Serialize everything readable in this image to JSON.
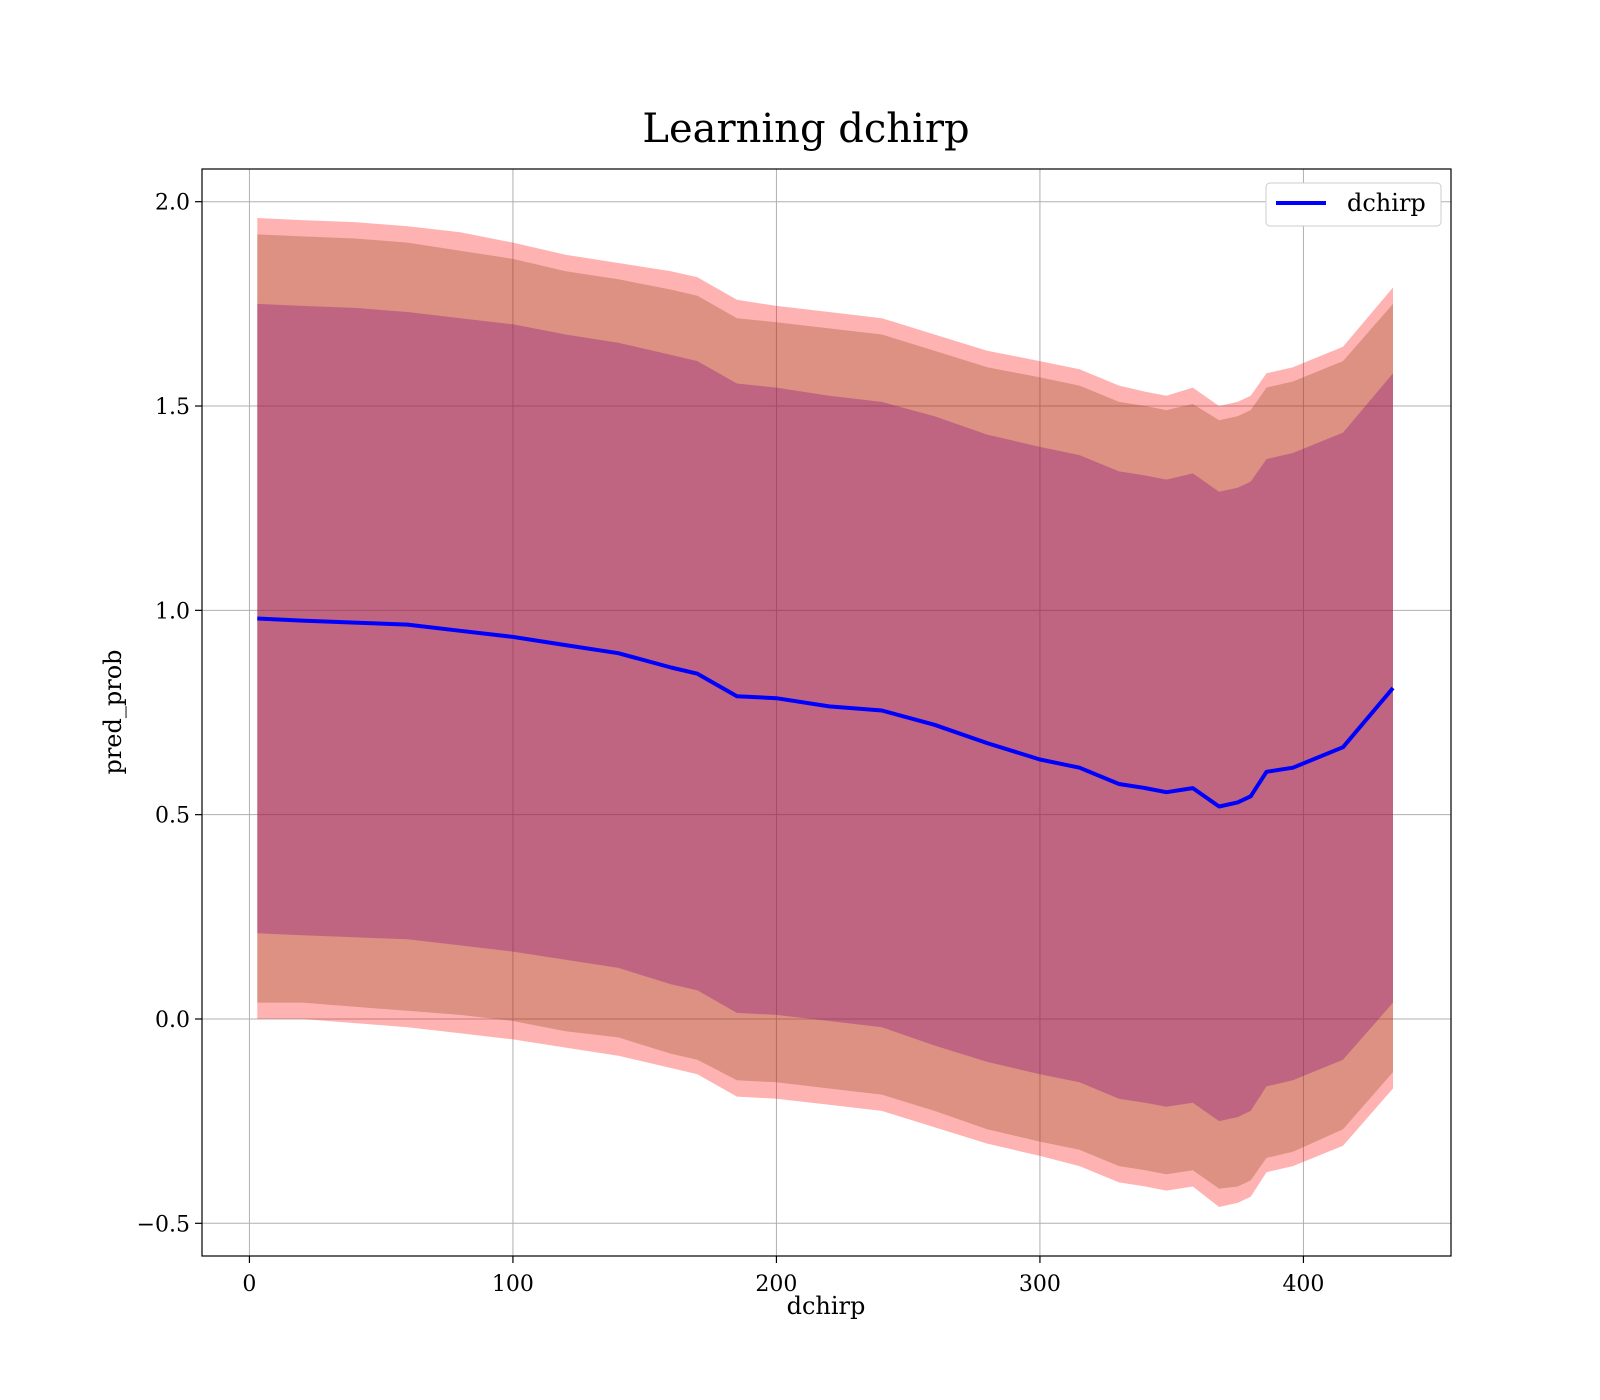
{
  "chart_data": {
    "type": "line",
    "title": "Learning dchirp",
    "xlabel": "dchirp",
    "ylabel": "pred_prob",
    "xlim": [
      -18,
      456
    ],
    "ylim": [
      -0.58,
      2.08
    ],
    "xticks": [
      0,
      100,
      200,
      300,
      400
    ],
    "yticks": [
      -0.5,
      0.0,
      0.5,
      1.0,
      1.5,
      2.0
    ],
    "xtick_labels": [
      "0",
      "100",
      "200",
      "300",
      "400"
    ],
    "ytick_labels": [
      "−0.5",
      "0.0",
      "0.5",
      "1.0",
      "1.5",
      "2.0"
    ],
    "grid": true,
    "legend": {
      "position": "top-right",
      "entries": [
        "dchirp"
      ]
    },
    "colors": {
      "line": "#0000ff",
      "band_outer": "#ff0000",
      "band_middle": "#8b4513",
      "band_inner": "#800080",
      "grid": "#b0b0b0",
      "axes": "#000000"
    },
    "x": [
      3,
      20,
      40,
      60,
      80,
      100,
      120,
      140,
      160,
      170,
      185,
      200,
      220,
      240,
      260,
      280,
      300,
      315,
      330,
      340,
      348,
      358,
      368,
      375,
      380,
      386,
      396,
      415,
      434
    ],
    "series": [
      {
        "name": "dchirp",
        "values": [
          0.98,
          0.975,
          0.97,
          0.965,
          0.95,
          0.935,
          0.915,
          0.895,
          0.86,
          0.845,
          0.79,
          0.785,
          0.765,
          0.755,
          0.72,
          0.675,
          0.635,
          0.615,
          0.575,
          0.565,
          0.555,
          0.565,
          0.52,
          0.53,
          0.545,
          0.605,
          0.615,
          0.665,
          0.81
        ]
      }
    ],
    "bands": [
      {
        "upper": [
          1.96,
          1.955,
          1.95,
          1.94,
          1.925,
          1.9,
          1.87,
          1.85,
          1.83,
          1.815,
          1.76,
          1.745,
          1.73,
          1.715,
          1.675,
          1.635,
          1.61,
          1.59,
          1.55,
          1.535,
          1.525,
          1.545,
          1.5,
          1.51,
          1.525,
          1.58,
          1.595,
          1.645,
          1.79
        ],
        "lower": [
          0.0,
          0.0,
          -0.01,
          -0.02,
          -0.035,
          -0.05,
          -0.07,
          -0.09,
          -0.12,
          -0.135,
          -0.19,
          -0.195,
          -0.21,
          -0.225,
          -0.265,
          -0.305,
          -0.335,
          -0.36,
          -0.4,
          -0.41,
          -0.42,
          -0.41,
          -0.46,
          -0.45,
          -0.435,
          -0.375,
          -0.36,
          -0.31,
          -0.17
        ]
      },
      {
        "upper": [
          1.92,
          1.915,
          1.91,
          1.9,
          1.88,
          1.86,
          1.83,
          1.81,
          1.785,
          1.77,
          1.715,
          1.705,
          1.69,
          1.675,
          1.635,
          1.595,
          1.57,
          1.55,
          1.51,
          1.5,
          1.49,
          1.505,
          1.465,
          1.475,
          1.49,
          1.545,
          1.56,
          1.61,
          1.75
        ],
        "lower": [
          0.04,
          0.04,
          0.03,
          0.02,
          0.01,
          -0.005,
          -0.03,
          -0.045,
          -0.085,
          -0.1,
          -0.15,
          -0.155,
          -0.17,
          -0.185,
          -0.225,
          -0.27,
          -0.3,
          -0.32,
          -0.36,
          -0.37,
          -0.38,
          -0.37,
          -0.415,
          -0.41,
          -0.395,
          -0.34,
          -0.325,
          -0.27,
          -0.13
        ]
      },
      {
        "upper": [
          1.75,
          1.745,
          1.74,
          1.73,
          1.715,
          1.7,
          1.675,
          1.655,
          1.625,
          1.61,
          1.555,
          1.545,
          1.525,
          1.51,
          1.475,
          1.43,
          1.4,
          1.38,
          1.34,
          1.33,
          1.32,
          1.335,
          1.29,
          1.3,
          1.315,
          1.37,
          1.385,
          1.435,
          1.58
        ],
        "lower": [
          0.21,
          0.205,
          0.2,
          0.195,
          0.18,
          0.165,
          0.145,
          0.125,
          0.085,
          0.07,
          0.015,
          0.01,
          -0.005,
          -0.02,
          -0.065,
          -0.105,
          -0.135,
          -0.155,
          -0.195,
          -0.205,
          -0.215,
          -0.205,
          -0.25,
          -0.24,
          -0.225,
          -0.165,
          -0.15,
          -0.1,
          0.04
        ]
      }
    ]
  }
}
